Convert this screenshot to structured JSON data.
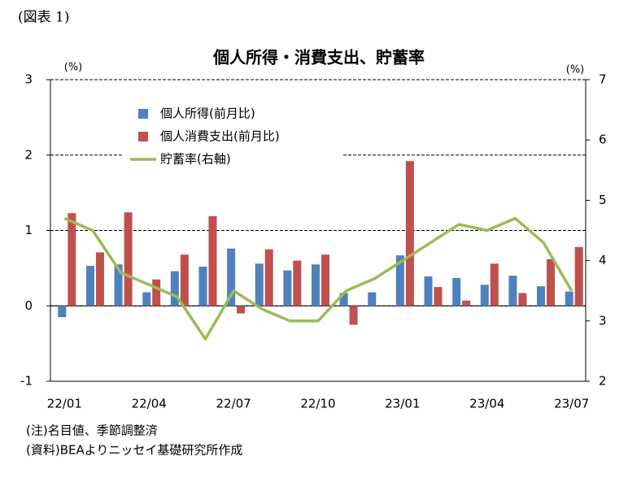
{
  "figure_label": "(図表 1)",
  "chart_data": {
    "type": "bar_line",
    "title": "個人所得・消費支出、貯蓄率",
    "ylabel": "(%)",
    "y2label": "(%)",
    "categories": [
      "22/01",
      null,
      null,
      "22/04",
      null,
      null,
      "22/07",
      null,
      null,
      "22/10",
      null,
      null,
      "23/01",
      null,
      null,
      "23/04",
      null,
      null,
      "23/07"
    ],
    "series": [
      {
        "name": "個人所得(前月比)",
        "color": "#4f81bd",
        "type": "bar",
        "values": [
          -0.15,
          0.53,
          0.55,
          0.18,
          0.46,
          0.52,
          0.76,
          0.56,
          0.47,
          0.55,
          0.17,
          0.18,
          0.67,
          0.39,
          0.37,
          0.28,
          0.4,
          0.26,
          0.19
        ]
      },
      {
        "name": "個人消費支出(前月比)",
        "color": "#c0504d",
        "type": "bar",
        "values": [
          1.23,
          0.71,
          1.24,
          0.35,
          0.68,
          1.19,
          -0.1,
          0.75,
          0.6,
          0.68,
          -0.25,
          0,
          1.92,
          0.25,
          0.07,
          0.56,
          0.17,
          0.62,
          0.78
        ]
      },
      {
        "name": "貯蓄率(右軸)",
        "color": "#9bbb59",
        "type": "line",
        "axis": "y2",
        "values": [
          4.7,
          4.5,
          3.8,
          3.6,
          3.4,
          2.7,
          3.5,
          3.2,
          3.0,
          3.0,
          3.5,
          3.7,
          4.0,
          4.3,
          4.6,
          4.5,
          4.7,
          4.3,
          3.5
        ]
      }
    ],
    "ylim": [
      -1,
      3
    ],
    "yticks": [
      -1,
      0,
      1,
      2,
      3
    ],
    "y2lim": [
      2,
      7
    ],
    "y2ticks": [
      2,
      3,
      4,
      5,
      6,
      7
    ],
    "grid": true
  },
  "notes": [
    "(注)名目値、季節調整済",
    "(資料)BEAよりニッセイ基礎研究所作成"
  ]
}
